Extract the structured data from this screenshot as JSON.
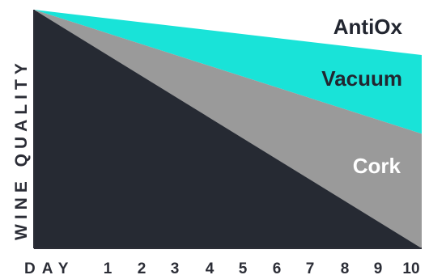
{
  "chart_data": {
    "type": "area",
    "title": "",
    "xlabel": "DAY",
    "ylabel": "WINE QUALITY",
    "x_ticks": [
      "1",
      "2",
      "3",
      "4",
      "5",
      "6",
      "7",
      "8",
      "9",
      "10"
    ],
    "x_range": [
      0,
      10
    ],
    "y_range": [
      0,
      100
    ],
    "grid": false,
    "legend": "none",
    "series": [
      {
        "name": "AntiOx",
        "color": "#19e3d8",
        "label_color": "#222630",
        "x": [
          0,
          10
        ],
        "y": [
          100,
          81
        ]
      },
      {
        "name": "Vacuum",
        "color": "#9a9a9a",
        "label_color": "#222630",
        "x": [
          0,
          10
        ],
        "y": [
          100,
          48
        ]
      },
      {
        "name": "Cork",
        "color": "#262a33",
        "label_color": "#ffffff",
        "x": [
          0,
          10
        ],
        "y": [
          100,
          0
        ]
      }
    ]
  }
}
